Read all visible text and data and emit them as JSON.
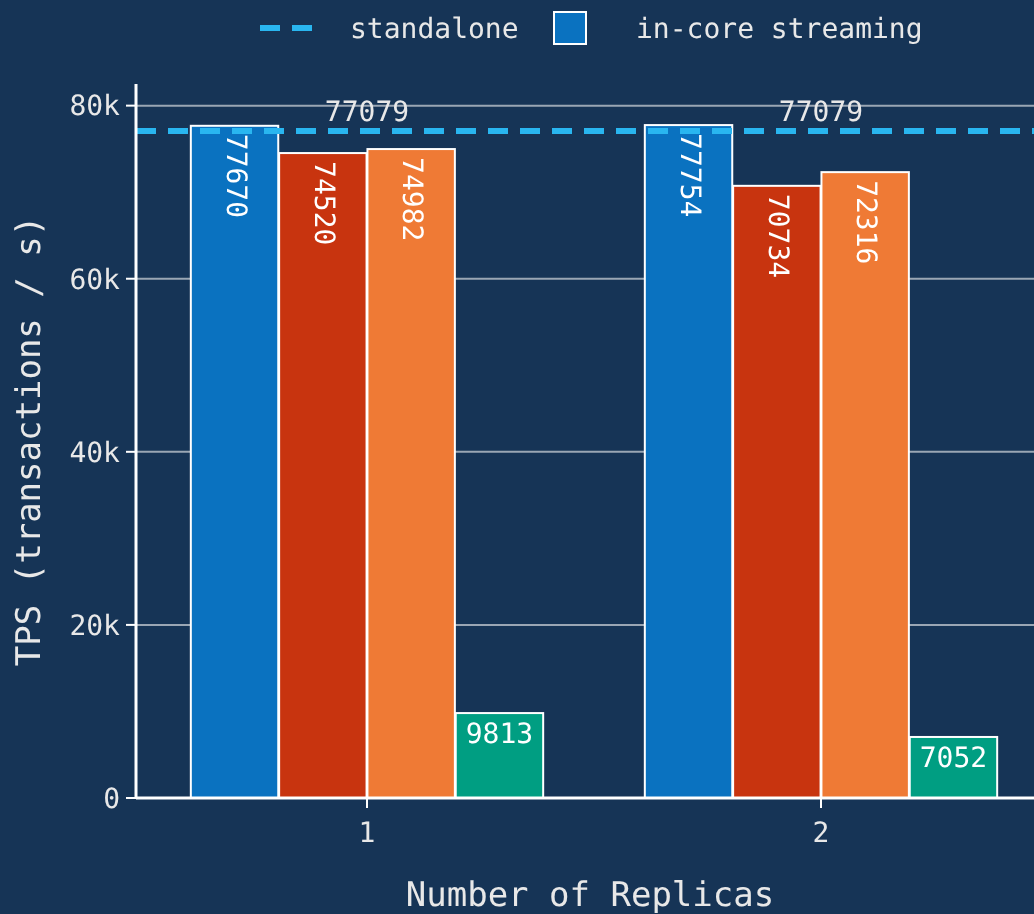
{
  "chart_data": {
    "type": "bar",
    "xlabel": "Number of Replicas",
    "ylabel": "TPS (transactions / s)",
    "categories": [
      "1",
      "2"
    ],
    "series": [
      {
        "name": "in-core streaming",
        "color": "#0a72c0",
        "values": [
          77670,
          77754
        ]
      },
      {
        "color": "#c8340f",
        "values": [
          74520,
          70734
        ]
      },
      {
        "color": "#ef7a35",
        "values": [
          74982,
          72316
        ]
      },
      {
        "color": "#009e82",
        "values": [
          9813,
          7052
        ]
      }
    ],
    "ylim": [
      0,
      82500
    ],
    "yticks": [
      0,
      {
        "value": 20000,
        "label": "20k"
      },
      {
        "value": 40000,
        "label": "40k"
      },
      {
        "value": 60000,
        "label": "60k"
      },
      {
        "value": 80000,
        "label": "80k"
      }
    ],
    "grid": "y",
    "legend": "top",
    "data_labels": true,
    "ref_lines": [
      {
        "axis": "y",
        "value": 77079,
        "label": "standalone",
        "color": "#29b6f0",
        "line_style": "dashed"
      }
    ],
    "annotations": [
      {
        "text": "77079",
        "x": "1",
        "y": 77079
      },
      {
        "text": "77079",
        "x": "2",
        "y": 77079
      }
    ]
  }
}
